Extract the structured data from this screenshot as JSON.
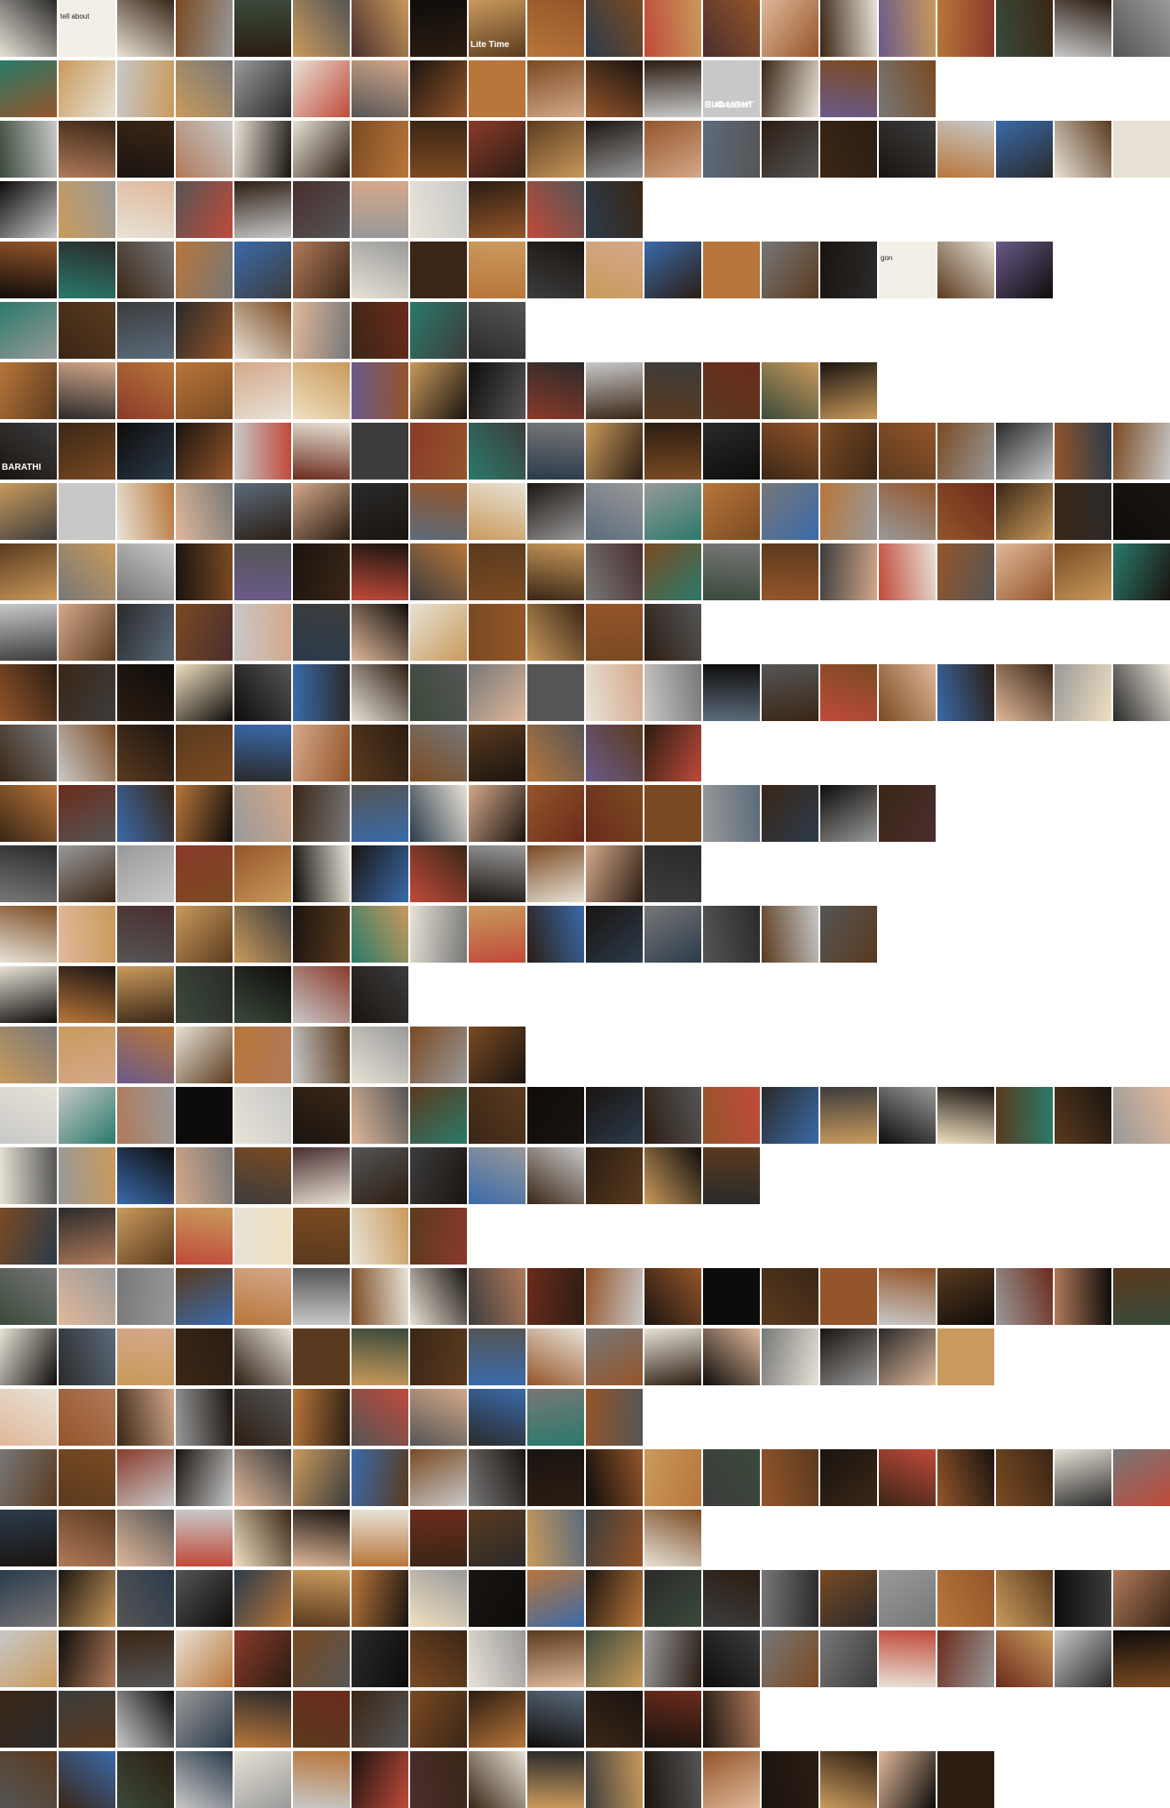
{
  "grid": {
    "background": "#ffffff",
    "rows": [
      {
        "row": 1,
        "count": 20
      },
      {
        "row": 2,
        "count": 16
      },
      {
        "row": 3,
        "count": 20
      },
      {
        "row": 4,
        "count": 11
      },
      {
        "row": 5,
        "count": 18
      },
      {
        "row": 6,
        "count": 9
      },
      {
        "row": 7,
        "count": 15
      },
      {
        "row": 8,
        "count": 20
      },
      {
        "row": 9,
        "count": 20
      },
      {
        "row": 10,
        "count": 20
      },
      {
        "row": 11,
        "count": 12
      },
      {
        "row": 12,
        "count": 20
      },
      {
        "row": 13,
        "count": 12
      },
      {
        "row": 14,
        "count": 16
      },
      {
        "row": 15,
        "count": 12
      },
      {
        "row": 16,
        "count": 15
      },
      {
        "row": 17,
        "count": 7
      },
      {
        "row": 18,
        "count": 9
      },
      {
        "row": 19,
        "count": 20
      },
      {
        "row": 20,
        "count": 13
      },
      {
        "row": 21,
        "count": 8
      },
      {
        "row": 22,
        "count": 20
      },
      {
        "row": 23,
        "count": 17
      },
      {
        "row": 24,
        "count": 11
      },
      {
        "row": 25,
        "count": 20
      },
      {
        "row": 26,
        "count": 12
      },
      {
        "row": 27,
        "count": 20
      },
      {
        "row": 28,
        "count": 20
      },
      {
        "row": 29,
        "count": 13
      },
      {
        "row": 30,
        "count": 17
      }
    ],
    "palette": [
      "#1a1410",
      "#2b1d12",
      "#3a2616",
      "#5a3a1e",
      "#7a4a22",
      "#94552a",
      "#b8763a",
      "#c99a5c",
      "#2a2a2a",
      "#3c3c3c",
      "#555555",
      "#777777",
      "#999999",
      "#c8c8c8",
      "#e8e2d6",
      "#0e0c0a",
      "#4a2e2e",
      "#6b2b1b",
      "#8a3a2a",
      "#3a4a3a",
      "#2b3b4b",
      "#5b6b7b",
      "#d4a88a",
      "#e0b89a",
      "#b07a5a",
      "#f0e0c0",
      "#6a5a8a",
      "#3a6aaa",
      "#2a7a6a",
      "#c04a3a"
    ]
  },
  "captions": [
    {
      "row": 1,
      "col": 2,
      "text": "tell about",
      "style": "dark"
    },
    {
      "row": 1,
      "col": 9,
      "text": "Lite Time",
      "style": "light"
    },
    {
      "row": 2,
      "col": 13,
      "text": "BUD LIGHT",
      "style": "light"
    },
    {
      "row": 2,
      "col": 13,
      "text": "Budweiser",
      "style": "light"
    },
    {
      "row": 8,
      "col": 1,
      "text": "BARATHI",
      "style": "light"
    },
    {
      "row": 5,
      "col": 16,
      "text": "gon",
      "style": "dark"
    }
  ]
}
